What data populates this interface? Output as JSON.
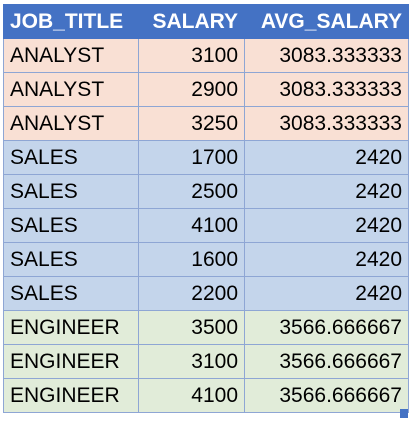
{
  "table": {
    "headers": [
      "JOB_TITLE",
      "SALARY",
      "AVG_SALARY"
    ],
    "rows": [
      {
        "job_title": "ANALYST",
        "salary": "3100",
        "avg_salary": "3083.333333",
        "color": "#f9e0d4"
      },
      {
        "job_title": "ANALYST",
        "salary": "2900",
        "avg_salary": "3083.333333",
        "color": "#f9e0d4"
      },
      {
        "job_title": "ANALYST",
        "salary": "3250",
        "avg_salary": "3083.333333",
        "color": "#f9e0d4"
      },
      {
        "job_title": "SALES",
        "salary": "1700",
        "avg_salary": "2420",
        "color": "#c4d5eb"
      },
      {
        "job_title": "SALES",
        "salary": "2500",
        "avg_salary": "2420",
        "color": "#c4d5eb"
      },
      {
        "job_title": "SALES",
        "salary": "4100",
        "avg_salary": "2420",
        "color": "#c4d5eb"
      },
      {
        "job_title": "SALES",
        "salary": "1600",
        "avg_salary": "2420",
        "color": "#c4d5eb"
      },
      {
        "job_title": "SALES",
        "salary": "2200",
        "avg_salary": "2420",
        "color": "#c4d5eb"
      },
      {
        "job_title": "ENGINEER",
        "salary": "3500",
        "avg_salary": "3566.666667",
        "color": "#e1ecd9"
      },
      {
        "job_title": "ENGINEER",
        "salary": "3100",
        "avg_salary": "3566.666667",
        "color": "#e1ecd9"
      },
      {
        "job_title": "ENGINEER",
        "salary": "4100",
        "avg_salary": "3566.666667",
        "color": "#e1ecd9"
      }
    ],
    "header_color": "#4472c4"
  }
}
